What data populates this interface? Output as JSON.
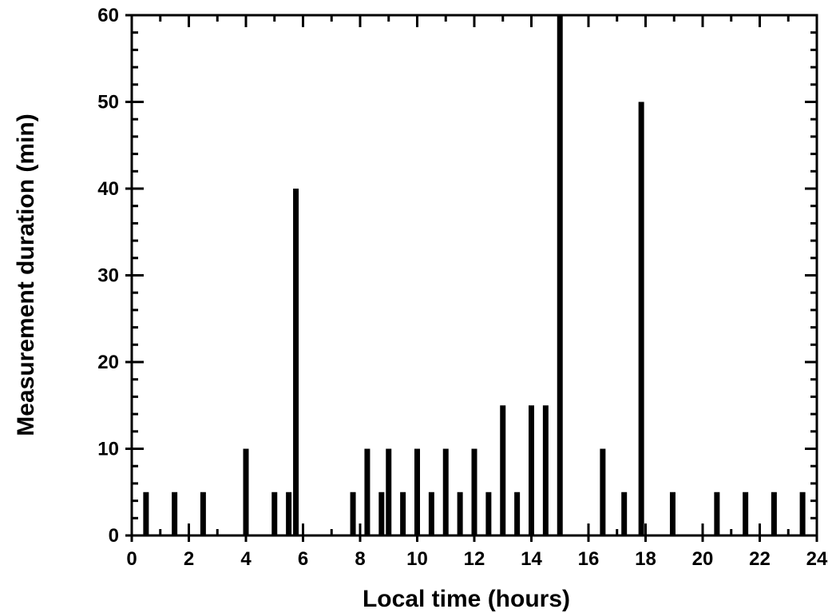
{
  "chart_data": {
    "type": "bar",
    "title": "",
    "xlabel": "Local time (hours)",
    "ylabel": "Measurement duration (min)",
    "xlim": [
      0,
      24
    ],
    "ylim": [
      0,
      60
    ],
    "x_ticks": [
      0,
      2,
      4,
      6,
      8,
      10,
      12,
      14,
      16,
      18,
      20,
      22,
      24
    ],
    "y_ticks": [
      0,
      10,
      20,
      30,
      40,
      50,
      60
    ],
    "grid": false,
    "legend": "none",
    "bar_color": "#000000",
    "x": [
      0.5,
      1.5,
      2.5,
      4.0,
      5.0,
      5.5,
      5.75,
      7.75,
      8.25,
      8.75,
      9.0,
      9.5,
      10.0,
      10.5,
      11.0,
      11.5,
      12.0,
      12.5,
      13.0,
      13.5,
      14.0,
      14.5,
      15.0,
      16.5,
      17.25,
      17.85,
      18.95,
      20.5,
      21.5,
      22.5,
      23.5
    ],
    "values": [
      5,
      5,
      5,
      10,
      5,
      5,
      40,
      5,
      10,
      5,
      10,
      5,
      10,
      5,
      10,
      5,
      10,
      5,
      15,
      5,
      15,
      15,
      60,
      10,
      5,
      50,
      5,
      5,
      5,
      5,
      5
    ]
  }
}
